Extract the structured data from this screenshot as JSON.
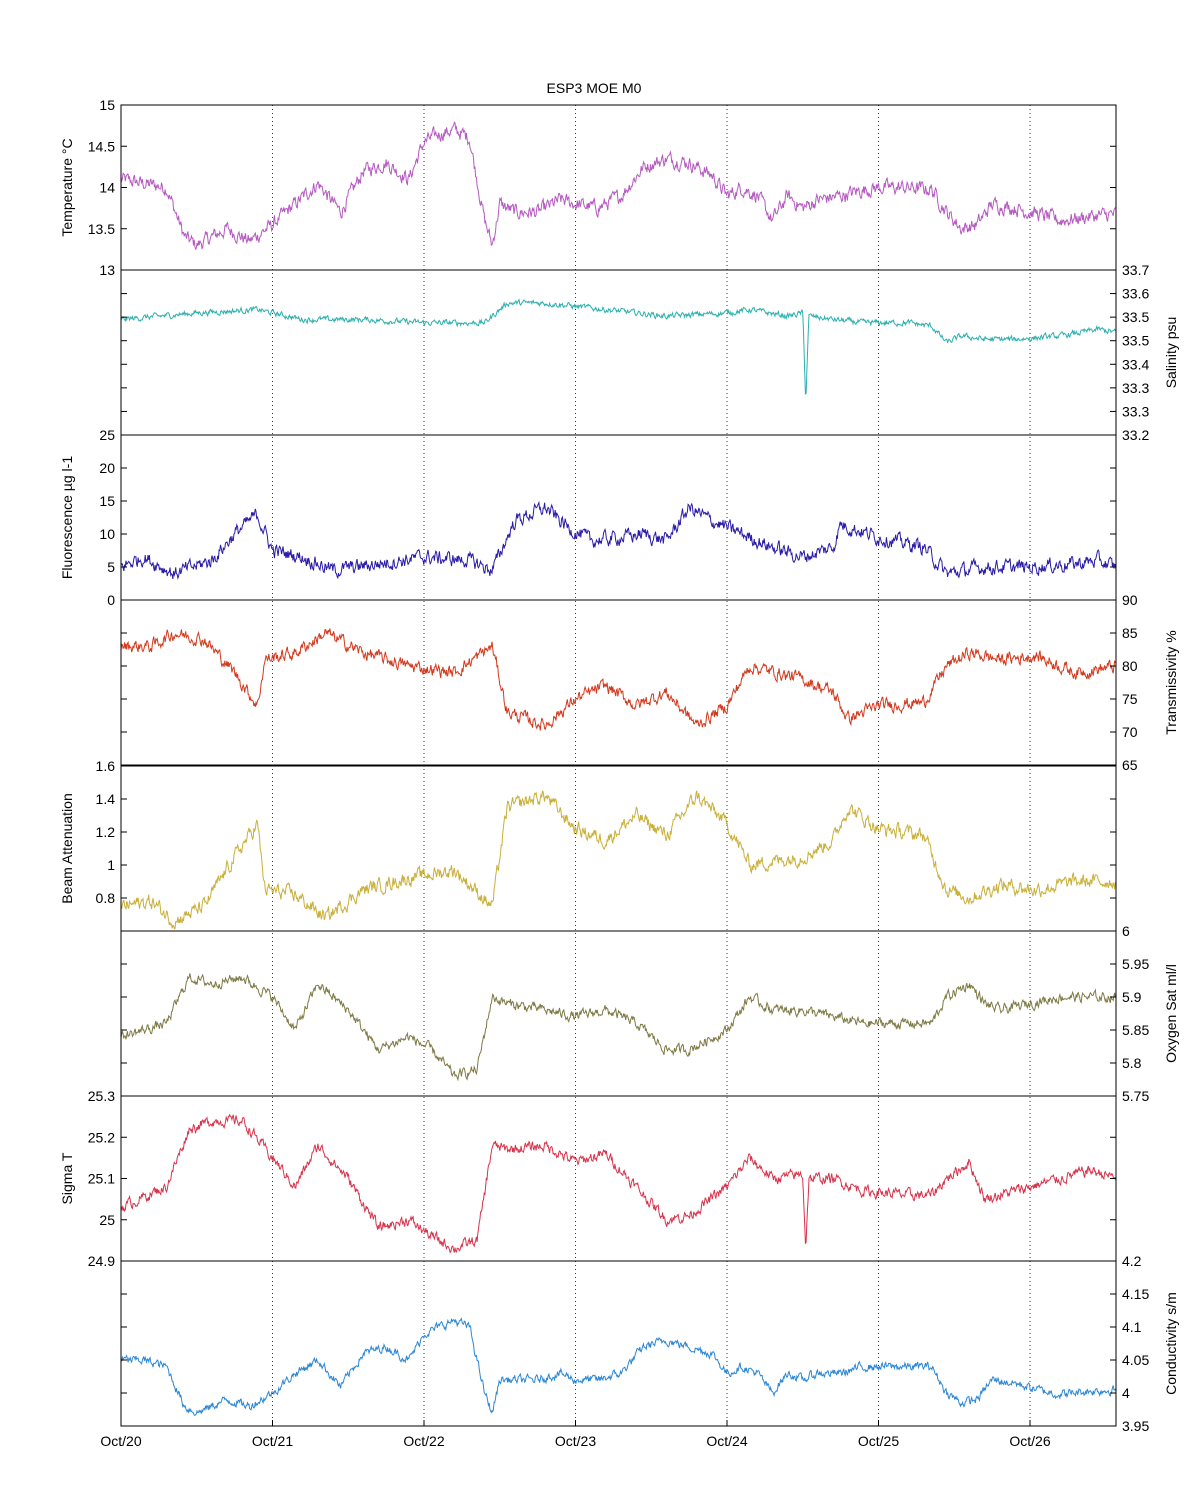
{
  "chart_data": {
    "type": "line",
    "title": "ESP3 MOE   M0",
    "x_range": [
      "Oct/20",
      "Oct/26 ~14:00"
    ],
    "x_ticks": [
      "Oct/20",
      "Oct/21",
      "Oct/22",
      "Oct/23",
      "Oct/24",
      "Oct/25",
      "Oct/26"
    ],
    "x_grid": "dotted vertical at each day",
    "panels": [
      {
        "name": "Temperature",
        "ylabel": "Temperature °C",
        "axis_side": "left",
        "color": "#B55AC0",
        "ylim": [
          13,
          15
        ],
        "yticks": [
          "13",
          "13.5",
          "14",
          "14.5",
          "15"
        ],
        "series": {
          "x_days": [
            0,
            0.15,
            0.3,
            0.42,
            0.5,
            0.6,
            0.7,
            0.85,
            1.0,
            1.15,
            1.3,
            1.45,
            1.6,
            1.75,
            1.9,
            2.0,
            2.1,
            2.2,
            2.3,
            2.4,
            2.45,
            2.5,
            2.6,
            2.75,
            2.9,
            3.0,
            3.15,
            3.3,
            3.45,
            3.6,
            3.75,
            3.9,
            4.0,
            4.1,
            4.2,
            4.3,
            4.4,
            4.5,
            4.6,
            4.75,
            4.9,
            5.0,
            5.15,
            5.35,
            5.45,
            5.55,
            5.65,
            5.75,
            5.9,
            6.05,
            6.2,
            6.4,
            6.58
          ],
          "values": [
            14.1,
            14.05,
            14.0,
            13.4,
            13.3,
            13.4,
            13.5,
            13.35,
            13.55,
            13.8,
            14.05,
            13.7,
            14.2,
            14.3,
            14.1,
            14.55,
            14.65,
            14.7,
            14.6,
            13.6,
            13.3,
            13.8,
            13.7,
            13.7,
            13.85,
            13.8,
            13.75,
            13.9,
            14.25,
            14.35,
            14.3,
            14.15,
            13.9,
            14.0,
            13.9,
            13.6,
            13.9,
            13.75,
            13.85,
            13.9,
            13.97,
            14.0,
            14.0,
            13.98,
            13.7,
            13.5,
            13.55,
            13.8,
            13.75,
            13.68,
            13.6,
            13.65,
            13.68
          ],
          "noise": 0.08
        }
      },
      {
        "name": "Salinity",
        "ylabel": "Salinity psu",
        "axis_side": "right",
        "color": "#2DAFB0",
        "ylim": [
          33.2,
          33.7
        ],
        "yticks": [
          "33.2",
          "33.3",
          "33.3",
          "33.4",
          "33.5",
          "33.5",
          "33.6",
          "33.7"
        ],
        "series": {
          "x_days": [
            0,
            0.5,
            0.9,
            1.2,
            1.6,
            2.0,
            2.4,
            2.55,
            2.8,
            3.2,
            3.6,
            4.0,
            4.15,
            4.4,
            4.5,
            4.52,
            4.54,
            4.7,
            4.9,
            5.2,
            5.35,
            5.45,
            5.55,
            5.7,
            5.9,
            6.2,
            6.45,
            6.58
          ],
          "values": [
            33.55,
            33.57,
            33.58,
            33.55,
            33.55,
            33.54,
            33.54,
            33.6,
            33.6,
            33.58,
            33.56,
            33.57,
            33.58,
            33.56,
            33.57,
            33.3,
            33.56,
            33.55,
            33.54,
            33.54,
            33.53,
            33.48,
            33.5,
            33.49,
            33.49,
            33.5,
            33.52,
            33.51
          ],
          "noise": 0.008
        }
      },
      {
        "name": "Fluorescence",
        "ylabel": "Fluorescence µg l-1",
        "axis_side": "left",
        "color": "#2A1CA8",
        "ylim": [
          0,
          25
        ],
        "yticks": [
          "0",
          "5",
          "10",
          "15",
          "20",
          "25"
        ],
        "series": {
          "x_days": [
            0,
            0.15,
            0.35,
            0.6,
            0.75,
            0.9,
            1.0,
            1.2,
            1.4,
            1.7,
            2.0,
            2.3,
            2.45,
            2.6,
            2.8,
            2.95,
            3.1,
            3.3,
            3.45,
            3.6,
            3.75,
            3.9,
            4.1,
            4.3,
            4.5,
            4.7,
            4.75,
            5.0,
            5.2,
            5.3,
            5.45,
            5.7,
            6.0,
            6.3,
            6.45,
            6.58
          ],
          "values": [
            5,
            6.5,
            4,
            6,
            10,
            13,
            7.5,
            6.5,
            4.5,
            5.5,
            6.5,
            6,
            4.5,
            12,
            14,
            11,
            9,
            9.5,
            10,
            9,
            14,
            12,
            10,
            8,
            6.5,
            8,
            11.5,
            9.5,
            8.5,
            8,
            4,
            5,
            5,
            5.5,
            6,
            4.8
          ],
          "noise": 1.0
        }
      },
      {
        "name": "Transmissivity",
        "ylabel": "Transmissivity %",
        "axis_side": "right",
        "color": "#D23A1E",
        "ylim": [
          65,
          90
        ],
        "yticks": [
          "65",
          "70",
          "75",
          "80",
          "85",
          "90"
        ],
        "series": {
          "x_days": [
            0,
            0.2,
            0.35,
            0.55,
            0.75,
            0.9,
            0.95,
            1.15,
            1.35,
            1.6,
            1.9,
            2.2,
            2.45,
            2.55,
            2.8,
            3.0,
            3.2,
            3.4,
            3.6,
            3.8,
            4.0,
            4.15,
            4.5,
            4.7,
            4.8,
            5.0,
            5.3,
            5.45,
            5.6,
            5.8,
            6.05,
            6.3,
            6.58
          ],
          "values": [
            83,
            83,
            85,
            84,
            79,
            74,
            81,
            82,
            85,
            82,
            80,
            79,
            83,
            73,
            71,
            75,
            77,
            74,
            76,
            71,
            74,
            80,
            78,
            76,
            72,
            74,
            74.5,
            80,
            82,
            81,
            81.5,
            79,
            80
          ],
          "noise": 0.9
        }
      },
      {
        "name": "Beam Attenuation",
        "ylabel": "Beam Attenuation",
        "axis_side": "left",
        "color": "#C9B03A",
        "ylim": [
          0.6,
          1.6
        ],
        "yticks": [
          "0.8",
          "1",
          "1.2",
          "1.4",
          "1.6"
        ],
        "series": {
          "x_days": [
            0,
            0.2,
            0.35,
            0.55,
            0.75,
            0.9,
            0.95,
            1.15,
            1.35,
            1.6,
            1.9,
            2.2,
            2.45,
            2.55,
            2.8,
            3.0,
            3.2,
            3.4,
            3.6,
            3.8,
            4.0,
            4.15,
            4.5,
            4.7,
            4.8,
            5.0,
            5.3,
            5.45,
            5.6,
            5.8,
            6.05,
            6.3,
            6.58
          ],
          "values": [
            0.75,
            0.78,
            0.66,
            0.75,
            1.05,
            1.25,
            0.85,
            0.82,
            0.68,
            0.85,
            0.92,
            0.97,
            0.75,
            1.35,
            1.42,
            1.22,
            1.15,
            1.3,
            1.18,
            1.42,
            1.25,
            1.0,
            1.05,
            1.15,
            1.35,
            1.22,
            1.18,
            0.85,
            0.8,
            0.88,
            0.85,
            0.9,
            0.9
          ],
          "noise": 0.04
        }
      },
      {
        "name": "Oxygen Sat",
        "ylabel": "Oxygen Sat ml/l",
        "axis_side": "right",
        "color": "#7E7A46",
        "ylim": [
          5.75,
          6
        ],
        "yticks": [
          "5.75",
          "5.8",
          "5.85",
          "5.9",
          "5.95",
          "6"
        ],
        "series": {
          "x_days": [
            0,
            0.3,
            0.45,
            0.6,
            0.8,
            1.0,
            1.15,
            1.3,
            1.5,
            1.7,
            1.9,
            2.05,
            2.2,
            2.35,
            2.45,
            2.55,
            2.8,
            3.0,
            3.2,
            3.4,
            3.6,
            3.75,
            4.0,
            4.15,
            4.3,
            4.5,
            4.7,
            4.9,
            5.2,
            5.35,
            5.45,
            5.6,
            5.7,
            5.8,
            6.0,
            6.2,
            6.58
          ],
          "values": [
            5.84,
            5.86,
            5.93,
            5.92,
            5.93,
            5.9,
            5.85,
            5.92,
            5.88,
            5.82,
            5.84,
            5.82,
            5.78,
            5.79,
            5.9,
            5.89,
            5.88,
            5.87,
            5.88,
            5.86,
            5.82,
            5.82,
            5.85,
            5.9,
            5.88,
            5.88,
            5.87,
            5.86,
            5.86,
            5.86,
            5.9,
            5.92,
            5.89,
            5.88,
            5.89,
            5.9,
            5.9
          ],
          "noise": 0.007
        }
      },
      {
        "name": "Sigma T",
        "ylabel": "Sigma T",
        "axis_side": "left",
        "color": "#D6344C",
        "ylim": [
          24.9,
          25.3
        ],
        "yticks": [
          "24.9",
          "25",
          "25.1",
          "25.2",
          "25.3"
        ],
        "series": {
          "x_days": [
            0,
            0.3,
            0.45,
            0.6,
            0.8,
            1.0,
            1.15,
            1.3,
            1.5,
            1.7,
            1.9,
            2.05,
            2.2,
            2.35,
            2.45,
            2.55,
            2.8,
            3.0,
            3.2,
            3.4,
            3.6,
            3.75,
            4.0,
            4.15,
            4.3,
            4.5,
            4.52,
            4.54,
            4.7,
            4.9,
            5.2,
            5.35,
            5.45,
            5.6,
            5.7,
            5.8,
            6.0,
            6.2,
            6.4,
            6.58
          ],
          "values": [
            25.03,
            25.08,
            25.22,
            25.24,
            25.24,
            25.15,
            25.08,
            25.18,
            25.1,
            24.98,
            25.0,
            24.96,
            24.93,
            24.95,
            25.18,
            25.17,
            25.18,
            25.14,
            25.16,
            25.08,
            25.0,
            25.01,
            25.08,
            25.15,
            25.1,
            25.11,
            24.93,
            25.1,
            25.1,
            25.07,
            25.06,
            25.06,
            25.1,
            25.14,
            25.05,
            25.06,
            25.08,
            25.1,
            25.12,
            25.1
          ],
          "noise": 0.012
        }
      },
      {
        "name": "Conductivity",
        "ylabel": "Conductivity s/m",
        "axis_side": "right",
        "color": "#2C87D4",
        "ylim": [
          3.95,
          4.2
        ],
        "yticks": [
          "3.95",
          "4",
          "4.05",
          "4.1",
          "4.15",
          "4.2"
        ],
        "series": {
          "x_days": [
            0,
            0.15,
            0.3,
            0.42,
            0.5,
            0.6,
            0.7,
            0.85,
            1.0,
            1.15,
            1.3,
            1.45,
            1.6,
            1.75,
            1.9,
            2.0,
            2.1,
            2.2,
            2.3,
            2.4,
            2.45,
            2.5,
            2.6,
            2.75,
            2.9,
            3.0,
            3.15,
            3.3,
            3.45,
            3.6,
            3.75,
            3.9,
            4.0,
            4.1,
            4.2,
            4.3,
            4.4,
            4.5,
            4.6,
            4.75,
            4.9,
            5.0,
            5.15,
            5.35,
            5.45,
            5.55,
            5.65,
            5.75,
            5.9,
            6.05,
            6.2,
            6.4,
            6.58
          ],
          "values": [
            4.05,
            4.05,
            4.04,
            3.98,
            3.97,
            3.98,
            3.99,
            3.98,
            4.0,
            4.03,
            4.05,
            4.01,
            4.06,
            4.07,
            4.05,
            4.09,
            4.1,
            4.11,
            4.1,
            4.0,
            3.97,
            4.02,
            4.02,
            4.02,
            4.03,
            4.02,
            4.02,
            4.03,
            4.07,
            4.08,
            4.07,
            4.06,
            4.03,
            4.04,
            4.03,
            4.0,
            4.03,
            4.02,
            4.03,
            4.03,
            4.04,
            4.04,
            4.04,
            4.04,
            4.0,
            3.985,
            3.99,
            4.02,
            4.015,
            4.005,
            3.998,
            4.003,
            4.005
          ],
          "noise": 0.006
        }
      }
    ]
  }
}
